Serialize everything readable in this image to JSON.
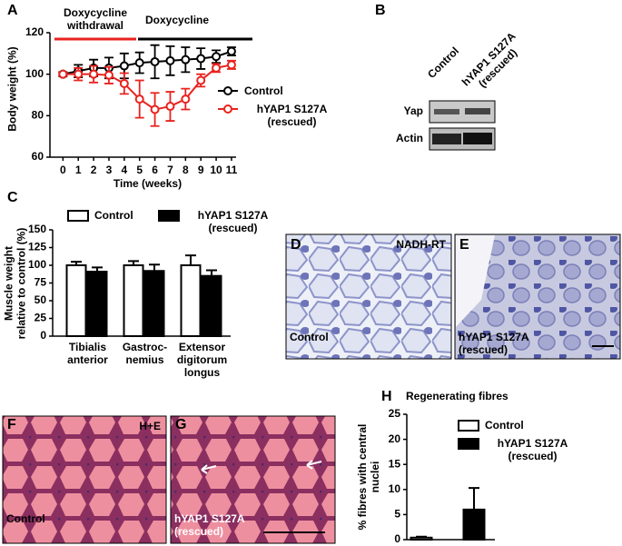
{
  "chart_data": [
    {
      "type": "line",
      "x_label": "Time (weeks)",
      "y_label": "Body weight (%)",
      "annotations": [
        "Doxycycline withdrawal",
        "Doxycycline"
      ],
      "x": [
        0,
        1,
        2,
        3,
        4,
        5,
        6,
        7,
        8,
        9,
        10,
        11
      ],
      "xlim": [
        -0.85,
        11.3
      ],
      "xticks": [
        0,
        1,
        2,
        3,
        4,
        5,
        6,
        7,
        8,
        9,
        10,
        11
      ],
      "ylim": [
        60,
        120
      ],
      "yticks": [
        60,
        80,
        100,
        120
      ],
      "series": [
        {
          "name": "Control",
          "color": "#000000",
          "values": [
            100,
            101.5,
            103,
            103,
            104,
            105.5,
            106,
            106.5,
            107,
            107.5,
            108.5,
            111
          ],
          "errors": [
            1,
            3,
            4,
            5,
            6,
            5,
            8,
            7,
            6,
            5,
            3,
            2
          ]
        },
        {
          "name": "hYAP1 S127A (rescued)",
          "color": "#e8231f",
          "values": [
            100,
            100,
            100,
            99.5,
            95.5,
            88,
            83,
            84.5,
            88,
            97,
            103,
            104.5
          ],
          "errors": [
            0.5,
            3,
            4,
            4,
            5,
            9,
            8,
            7,
            5,
            3,
            2,
            2
          ]
        }
      ]
    },
    {
      "type": "bar",
      "y_label": "Muscle weight relative to control (%)",
      "categories": [
        "Tibialis anterior",
        "Gastroc-nemius",
        "Extensor digitorum longus"
      ],
      "ylim": [
        0,
        150
      ],
      "yticks": [
        0,
        25,
        50,
        75,
        100,
        125,
        150
      ],
      "series": [
        {
          "name": "Control",
          "color": "#ffffff",
          "values": [
            100,
            100,
            100
          ],
          "errors": [
            5,
            6,
            14
          ]
        },
        {
          "name": "hYAP1 S127A (rescued)",
          "color": "#000000",
          "values": [
            91,
            92,
            85
          ],
          "errors": [
            6,
            9,
            8
          ]
        }
      ]
    },
    {
      "type": "bar",
      "title": "Regenerating fibres",
      "y_label": "% fibres with central nuclei",
      "categories": [
        null
      ],
      "ylim": [
        0,
        25
      ],
      "yticks": [
        0,
        5,
        10,
        15,
        20,
        25
      ],
      "series": [
        {
          "name": "Control",
          "color": "#ffffff",
          "values": [
            0.4
          ],
          "errors": [
            0.2
          ]
        },
        {
          "name": "hYAP1 S127A (rescued)",
          "color": "#000000",
          "values": [
            6
          ],
          "errors": [
            4.3
          ]
        }
      ]
    }
  ],
  "panel_letters": [
    "A",
    "B",
    "C",
    "D",
    "E",
    "F",
    "G",
    "H"
  ],
  "blot": {
    "lanes": [
      "Control",
      "hYAP1 S127A (rescued)"
    ],
    "rows": [
      "Yap",
      "Actin"
    ]
  },
  "micrographs": [
    {
      "stain": "NADH-RT",
      "label": "Control"
    },
    {
      "label": "hYAP1 S127A (rescued)"
    },
    {
      "stain": "H+E",
      "label": "Control"
    },
    {
      "label": "hYAP1 S127A (rescued)"
    }
  ]
}
